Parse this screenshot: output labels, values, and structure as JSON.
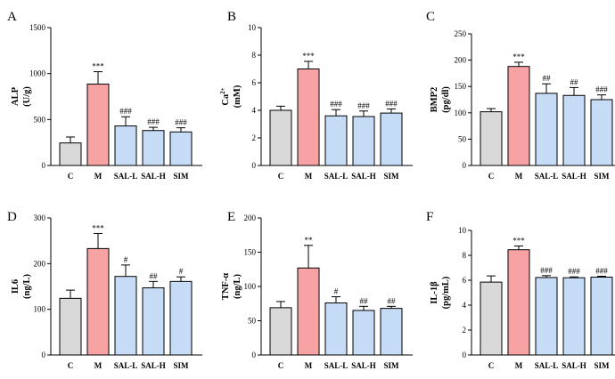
{
  "chart_data": [
    {
      "type": "bar",
      "panel": "A",
      "ylabel": "ALP",
      "yunit": "(U/g)",
      "categories": [
        "C",
        "M",
        "SAL-L",
        "SAL-H",
        "SIM"
      ],
      "values": [
        245,
        885,
        430,
        380,
        365
      ],
      "errors": [
        65,
        135,
        100,
        35,
        45
      ],
      "significance": [
        "",
        "***",
        "###",
        "###",
        "###"
      ],
      "ylim": [
        0,
        1500
      ],
      "yticks": [
        "0",
        "500",
        "1000",
        "1500"
      ],
      "colors": [
        "#d9d9d9",
        "#f8a3a3",
        "#c6dbf5",
        "#c6dbf5",
        "#c6dbf5"
      ]
    },
    {
      "type": "bar",
      "panel": "B",
      "ylabel": "Ca",
      "ylabel_sup": "2+",
      "yunit": "(mM)",
      "categories": [
        "C",
        "M",
        "SAL-L",
        "SAL-H",
        "SIM"
      ],
      "values": [
        4.0,
        7.0,
        3.6,
        3.55,
        3.8
      ],
      "errors": [
        0.3,
        0.55,
        0.45,
        0.4,
        0.3
      ],
      "significance": [
        "",
        "***",
        "###",
        "###",
        "###"
      ],
      "ylim": [
        0,
        10
      ],
      "yticks": [
        "0",
        "2",
        "4",
        "6",
        "8",
        "10"
      ],
      "colors": [
        "#d9d9d9",
        "#f8a3a3",
        "#c6dbf5",
        "#c6dbf5",
        "#c6dbf5"
      ]
    },
    {
      "type": "bar",
      "panel": "C",
      "ylabel": "BMP2",
      "yunit": "(pg/dl)",
      "categories": [
        "C",
        "M",
        "SAL-L",
        "SAL-H",
        "SIM"
      ],
      "values": [
        102,
        188,
        137,
        133,
        125
      ],
      "errors": [
        6,
        8,
        18,
        15,
        9
      ],
      "significance": [
        "",
        "***",
        "##",
        "##",
        "###"
      ],
      "ylim": [
        0,
        250
      ],
      "yticks": [
        "0",
        "50",
        "100",
        "150",
        "200",
        "250"
      ],
      "colors": [
        "#d9d9d9",
        "#f8a3a3",
        "#c6dbf5",
        "#c6dbf5",
        "#c6dbf5"
      ]
    },
    {
      "type": "bar",
      "panel": "D",
      "ylabel": "IL6",
      "yunit": "(ng/L)",
      "categories": [
        "C",
        "M",
        "SAL-L",
        "SAL-H",
        "SIM"
      ],
      "values": [
        124,
        233,
        172,
        147,
        161
      ],
      "errors": [
        18,
        33,
        25,
        14,
        10
      ],
      "significance": [
        "",
        "***",
        "#",
        "##",
        "#"
      ],
      "ylim": [
        0,
        300
      ],
      "yticks": [
        "0",
        "100",
        "200",
        "300"
      ],
      "colors": [
        "#d9d9d9",
        "#f8a3a3",
        "#c6dbf5",
        "#c6dbf5",
        "#c6dbf5"
      ]
    },
    {
      "type": "bar",
      "panel": "E",
      "ylabel": "TNF-α",
      "yunit": "(ng/L)",
      "categories": [
        "C",
        "M",
        "SAL-L",
        "SAL-H",
        "SIM"
      ],
      "values": [
        69,
        127,
        76,
        65,
        68
      ],
      "errors": [
        9,
        33,
        9,
        6,
        3
      ],
      "significance": [
        "",
        "**",
        "#",
        "##",
        "##"
      ],
      "ylim": [
        0,
        200
      ],
      "yticks": [
        "0",
        "50",
        "100",
        "150",
        "200"
      ],
      "colors": [
        "#d9d9d9",
        "#f8a3a3",
        "#c6dbf5",
        "#c6dbf5",
        "#c6dbf5"
      ]
    },
    {
      "type": "bar",
      "panel": "F",
      "ylabel": "IL-1β",
      "yunit": "(pg/mL)",
      "categories": [
        "C",
        "M",
        "SAL-L",
        "SAL-H",
        "SIM"
      ],
      "values": [
        5.85,
        8.45,
        6.22,
        6.2,
        6.25
      ],
      "errors": [
        0.5,
        0.3,
        0.15,
        0.07,
        0.07
      ],
      "significance": [
        "",
        "***",
        "###",
        "###",
        "###"
      ],
      "ylim": [
        0,
        10
      ],
      "yticks": [
        "0",
        "2",
        "4",
        "6",
        "8",
        "10"
      ],
      "colors": [
        "#d9d9d9",
        "#f8a3a3",
        "#c6dbf5",
        "#c6dbf5",
        "#c6dbf5"
      ]
    }
  ]
}
